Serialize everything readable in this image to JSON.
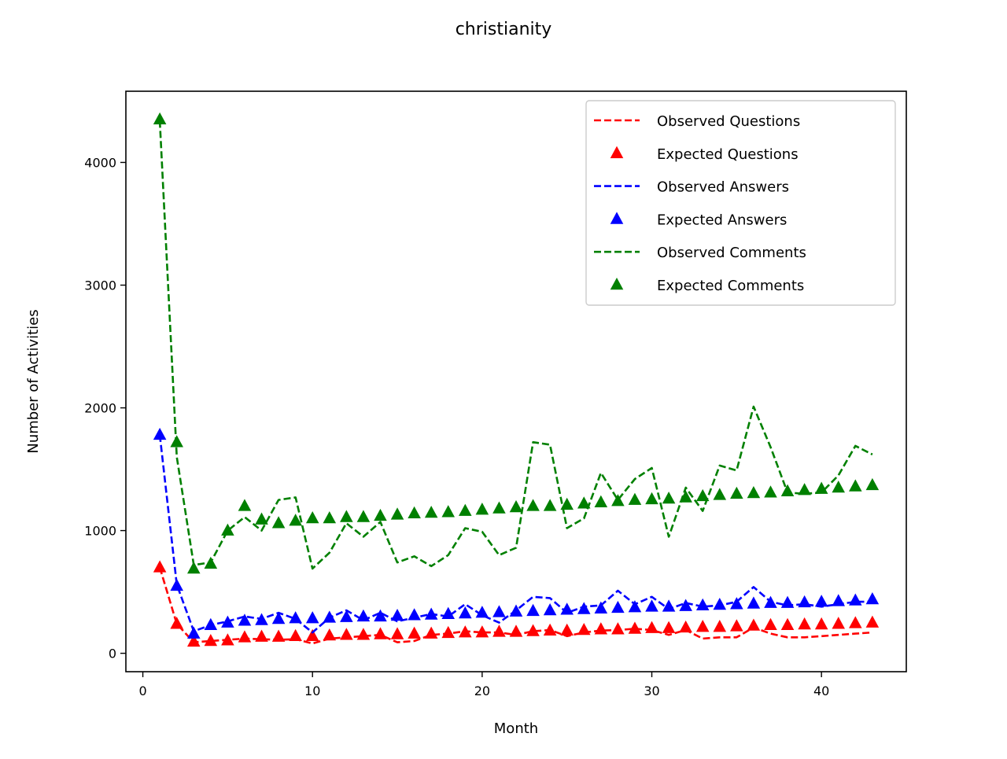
{
  "chart_data": {
    "type": "line",
    "title": "christianity",
    "xlabel": "Month",
    "ylabel": "Number of Activities",
    "xlim": [
      -1,
      45
    ],
    "ylim": [
      -150,
      4580
    ],
    "x_ticks": [
      0,
      10,
      20,
      30,
      40
    ],
    "y_ticks": [
      0,
      1000,
      2000,
      3000,
      4000
    ],
    "grid": false,
    "legend_position": "top-right",
    "x": [
      1,
      2,
      3,
      4,
      5,
      6,
      7,
      8,
      9,
      10,
      11,
      12,
      13,
      14,
      15,
      16,
      17,
      18,
      19,
      20,
      21,
      22,
      23,
      24,
      25,
      26,
      27,
      28,
      29,
      30,
      31,
      32,
      33,
      34,
      35,
      36,
      37,
      38,
      39,
      40,
      41,
      42,
      43
    ],
    "series": [
      {
        "name": "Observed Questions",
        "style": "dashed-line",
        "color": "#ff0000",
        "values": [
          700,
          240,
          90,
          100,
          110,
          120,
          115,
          110,
          115,
          80,
          120,
          130,
          140,
          150,
          90,
          100,
          150,
          160,
          180,
          170,
          170,
          150,
          180,
          190,
          140,
          170,
          185,
          190,
          200,
          190,
          150,
          190,
          120,
          130,
          130,
          210,
          160,
          130,
          130,
          140,
          150,
          160,
          170
        ]
      },
      {
        "name": "Expected Questions",
        "style": "triangle-markers",
        "color": "#ff0000",
        "values": [
          700,
          240,
          95,
          100,
          105,
          130,
          135,
          135,
          140,
          140,
          145,
          150,
          150,
          155,
          155,
          160,
          160,
          165,
          170,
          170,
          175,
          175,
          180,
          185,
          185,
          190,
          195,
          195,
          200,
          205,
          205,
          210,
          215,
          215,
          220,
          225,
          230,
          230,
          235,
          235,
          240,
          245,
          250
        ]
      },
      {
        "name": "Observed Answers",
        "style": "dashed-line",
        "color": "#0000ff",
        "values": [
          1780,
          560,
          180,
          230,
          260,
          300,
          280,
          330,
          280,
          170,
          290,
          350,
          270,
          330,
          260,
          290,
          320,
          300,
          400,
          310,
          250,
          350,
          460,
          450,
          330,
          380,
          390,
          510,
          400,
          460,
          360,
          410,
          380,
          390,
          420,
          540,
          420,
          390,
          400,
          380,
          400,
          420,
          420
        ]
      },
      {
        "name": "Expected Answers",
        "style": "triangle-markers",
        "color": "#0000ff",
        "values": [
          1780,
          550,
          160,
          230,
          250,
          265,
          270,
          280,
          285,
          285,
          290,
          295,
          300,
          300,
          305,
          310,
          315,
          320,
          325,
          330,
          335,
          340,
          345,
          350,
          355,
          360,
          365,
          370,
          375,
          380,
          380,
          385,
          390,
          395,
          400,
          405,
          410,
          410,
          415,
          420,
          425,
          430,
          440
        ]
      },
      {
        "name": "Observed Comments",
        "style": "dashed-line",
        "color": "#008000",
        "values": [
          4340,
          1600,
          720,
          740,
          1000,
          1110,
          1000,
          1250,
          1270,
          690,
          820,
          1060,
          950,
          1070,
          740,
          790,
          710,
          800,
          1020,
          990,
          800,
          860,
          1720,
          1700,
          1020,
          1100,
          1470,
          1250,
          1420,
          1510,
          950,
          1350,
          1160,
          1530,
          1490,
          2010,
          1680,
          1310,
          1300,
          1310,
          1450,
          1690,
          1620
        ]
      },
      {
        "name": "Expected Comments",
        "style": "triangle-markers",
        "color": "#008000",
        "values": [
          4350,
          1720,
          690,
          730,
          1000,
          1200,
          1090,
          1060,
          1080,
          1100,
          1100,
          1110,
          1110,
          1120,
          1130,
          1140,
          1145,
          1150,
          1160,
          1170,
          1180,
          1190,
          1200,
          1200,
          1210,
          1220,
          1230,
          1240,
          1250,
          1255,
          1260,
          1270,
          1280,
          1290,
          1300,
          1305,
          1310,
          1320,
          1330,
          1340,
          1350,
          1360,
          1370
        ]
      }
    ]
  }
}
